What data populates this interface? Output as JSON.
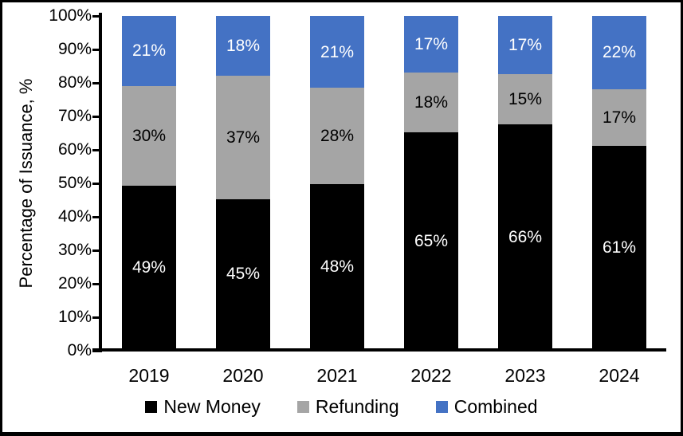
{
  "chart_data": {
    "type": "bar",
    "stacked": true,
    "title": "",
    "xlabel": "",
    "ylabel": "Percentage of Issuance, %",
    "categories": [
      "2019",
      "2020",
      "2021",
      "2022",
      "2023",
      "2024"
    ],
    "series": [
      {
        "name": "New Money",
        "color": "#000000",
        "label_color": "#ffffff",
        "values": [
          49,
          45,
          48,
          65,
          66,
          61
        ]
      },
      {
        "name": "Refunding",
        "color": "#a5a5a5",
        "label_color": "#000000",
        "values": [
          30,
          37,
          28,
          18,
          15,
          17
        ]
      },
      {
        "name": "Combined",
        "color": "#4472c4",
        "label_color": "#ffffff",
        "values": [
          21,
          18,
          21,
          17,
          17,
          22
        ]
      }
    ],
    "value_suffix": "%",
    "y_ticks": [
      "0%",
      "10%",
      "20%",
      "30%",
      "40%",
      "50%",
      "60%",
      "70%",
      "80%",
      "90%",
      "100%"
    ],
    "ylim": [
      0,
      100
    ],
    "grid": false,
    "legend_position": "bottom",
    "axis_color": "#000000",
    "background_color": "#ffffff"
  }
}
